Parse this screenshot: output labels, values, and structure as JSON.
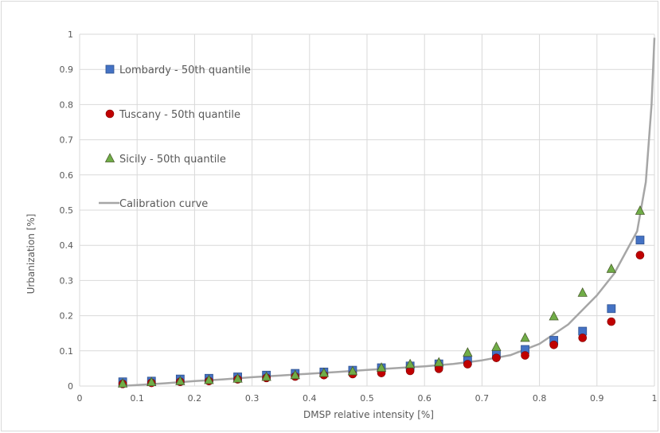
{
  "chart_data": {
    "type": "scatter",
    "title": "",
    "xlabel": "DMSP relative intensity [%]",
    "ylabel": "Urbanization [%]",
    "xlim": [
      0,
      1
    ],
    "ylim": [
      0,
      1
    ],
    "x_ticks": [
      "0",
      "0.1",
      "0.2",
      "0.3",
      "0.4",
      "0.5",
      "0.6",
      "0.7",
      "0.8",
      "0.9",
      "1"
    ],
    "y_ticks": [
      "0",
      "0.1",
      "0.2",
      "0.3",
      "0.4",
      "0.5",
      "0.6",
      "0.7",
      "0.8",
      "0.9",
      "1"
    ],
    "grid": true,
    "legend_position": "top-left",
    "series": [
      {
        "name": "Lombardy - 50th quantile",
        "marker": "square",
        "color": "#4472c4",
        "x": [
          0.075,
          0.125,
          0.175,
          0.225,
          0.275,
          0.325,
          0.375,
          0.425,
          0.475,
          0.525,
          0.575,
          0.625,
          0.675,
          0.725,
          0.775,
          0.825,
          0.875,
          0.925,
          0.975
        ],
        "y": [
          0.012,
          0.014,
          0.02,
          0.022,
          0.026,
          0.031,
          0.036,
          0.04,
          0.045,
          0.052,
          0.057,
          0.063,
          0.072,
          0.09,
          0.104,
          0.13,
          0.156,
          0.22,
          0.415
        ]
      },
      {
        "name": "Tuscany - 50th quantile",
        "marker": "circle",
        "color": "#c00000",
        "x": [
          0.075,
          0.125,
          0.175,
          0.225,
          0.275,
          0.325,
          0.375,
          0.425,
          0.475,
          0.525,
          0.575,
          0.625,
          0.675,
          0.725,
          0.775,
          0.825,
          0.875,
          0.925,
          0.975
        ],
        "y": [
          0.006,
          0.009,
          0.012,
          0.014,
          0.019,
          0.023,
          0.027,
          0.031,
          0.034,
          0.037,
          0.043,
          0.049,
          0.062,
          0.08,
          0.087,
          0.117,
          0.137,
          0.183,
          0.372
        ]
      },
      {
        "name": "Sicily - 50th quantile",
        "marker": "triangle",
        "color": "#70ad47",
        "x": [
          0.075,
          0.125,
          0.175,
          0.225,
          0.275,
          0.325,
          0.375,
          0.425,
          0.475,
          0.525,
          0.575,
          0.625,
          0.675,
          0.725,
          0.775,
          0.825,
          0.875,
          0.925,
          0.975
        ],
        "y": [
          0.007,
          0.011,
          0.014,
          0.017,
          0.021,
          0.026,
          0.031,
          0.037,
          0.042,
          0.052,
          0.062,
          0.067,
          0.095,
          0.111,
          0.137,
          0.198,
          0.265,
          0.333,
          0.498
        ]
      },
      {
        "name": "Calibration curve",
        "line": true,
        "color": "#a6a6a6",
        "x": [
          0.07,
          0.1,
          0.15,
          0.2,
          0.25,
          0.3,
          0.35,
          0.4,
          0.45,
          0.5,
          0.55,
          0.6,
          0.65,
          0.7,
          0.75,
          0.8,
          0.85,
          0.9,
          0.93,
          0.95,
          0.97,
          0.985,
          0.995,
          1.0
        ],
        "y": [
          0.0,
          0.003,
          0.008,
          0.014,
          0.019,
          0.025,
          0.03,
          0.035,
          0.04,
          0.046,
          0.051,
          0.056,
          0.063,
          0.073,
          0.088,
          0.12,
          0.175,
          0.258,
          0.32,
          0.38,
          0.44,
          0.58,
          0.8,
          0.99
        ]
      }
    ]
  }
}
